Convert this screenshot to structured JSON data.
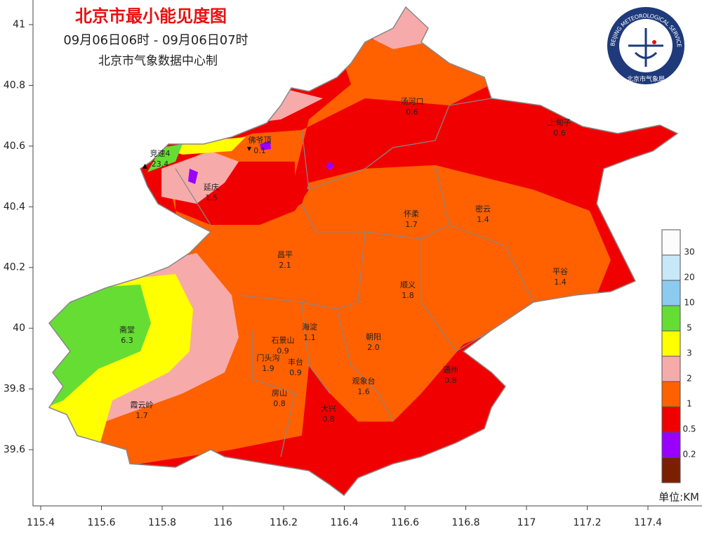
{
  "header": {
    "title": "北京市最小能见度图",
    "time": "09月06日06时 - 09月06日07时",
    "source": "北京市气象数据中心制"
  },
  "logo": {
    "ring": "BEIJING METEOROLOGICAL SERVICE",
    "name": "北京市气象局"
  },
  "axes": {
    "xticks": [
      115.4,
      115.6,
      115.8,
      116,
      116.2,
      116.4,
      116.6,
      116.8,
      117,
      117.2,
      117.4
    ],
    "yticks": [
      39.6,
      39.8,
      40,
      40.2,
      40.4,
      40.6,
      40.8,
      41
    ]
  },
  "stations": [
    {
      "name": "汤河口",
      "value": "0.6"
    },
    {
      "name": "上甸子",
      "value": "0.6"
    },
    {
      "name": "佛爷顶",
      "value": "0.1"
    },
    {
      "name": "竞速4",
      "value": "23.4"
    },
    {
      "name": "延庆",
      "value": "1.5"
    },
    {
      "name": "怀柔",
      "value": "1.7"
    },
    {
      "name": "密云",
      "value": "1.4"
    },
    {
      "name": "昌平",
      "value": "2.1"
    },
    {
      "name": "平谷",
      "value": "1.4"
    },
    {
      "name": "顺义",
      "value": "1.8"
    },
    {
      "name": "斋堂",
      "value": "6.3"
    },
    {
      "name": "海淀",
      "value": "1.1"
    },
    {
      "name": "朝阳",
      "value": "2.0"
    },
    {
      "name": "石景山",
      "value": "0.9"
    },
    {
      "name": "门头沟",
      "value": "1.9"
    },
    {
      "name": "丰台",
      "value": "0.9"
    },
    {
      "name": "观象台",
      "value": "1.6"
    },
    {
      "name": "通州",
      "value": "0.8"
    },
    {
      "name": "房山",
      "value": "0.8"
    },
    {
      "name": "大兴",
      "value": "0.8"
    },
    {
      "name": "霞云岭",
      "value": "1.7"
    }
  ],
  "legend": {
    "colors": [
      "#fcfcfc",
      "#c8e8f8",
      "#8ccbf0",
      "#66dd33",
      "#ffff00",
      "#f7aaaa",
      "#ff6000",
      "#f00000",
      "#9900ff",
      "#7a2000"
    ],
    "labels": [
      "30",
      "20",
      "10",
      "5",
      "3",
      "2",
      "1",
      "0.5",
      "0.2"
    ],
    "unit": "单位:KM"
  }
}
